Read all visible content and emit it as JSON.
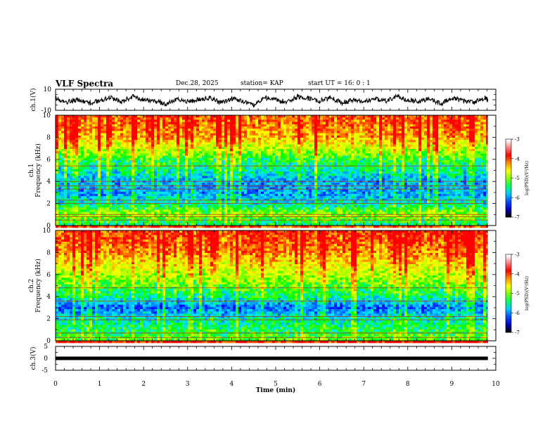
{
  "header": {
    "title": "VLF Spectra",
    "date": "Dec.28, 2025",
    "station": "station= KAP",
    "start": "start  UT =   16: 0  : 1"
  },
  "colors": {
    "spectrum_ramp": [
      "#0000ff",
      "#0080ff",
      "#00e6ff",
      "#00ff00",
      "#b4ff00",
      "#ffff00",
      "#ff8000",
      "#ff0000"
    ],
    "colorbar": [
      "#000000",
      "#0000c8",
      "#0050ff",
      "#00c8ff",
      "#00ff60",
      "#80ff00",
      "#ffff00",
      "#ff9000",
      "#ff0000",
      "#ff8080",
      "#ffffff"
    ]
  },
  "chart_data": [
    {
      "type": "line",
      "name": "ch1-waveform",
      "ylabel": "ch.1(V)",
      "ylim": [
        -10,
        10
      ],
      "yticks": [
        "10",
        "-10"
      ],
      "x": [
        0,
        0.25,
        0.5,
        0.75,
        1,
        1.25,
        1.5,
        1.75,
        2,
        2.25,
        2.5,
        2.75,
        3,
        3.25,
        3.5,
        3.75,
        4,
        4.25,
        4.5,
        4.75,
        5,
        5.25,
        5.5,
        5.75,
        6,
        6.25,
        6.5,
        6.75,
        7,
        7.25,
        7.5,
        7.75,
        8,
        8.25,
        8.5,
        8.75,
        9,
        9.25,
        9.5,
        9.75,
        9.82
      ],
      "y": [
        1,
        -2,
        0,
        -3,
        -1,
        2,
        -2,
        3,
        0,
        -1,
        -4,
        1,
        -2,
        0,
        2,
        -3,
        1,
        -1,
        -5,
        2,
        0,
        -2,
        3,
        1,
        -1,
        2,
        -3,
        0,
        -2,
        1,
        -1,
        3,
        0,
        -2,
        1,
        -4,
        2,
        -1,
        -3,
        2,
        0
      ]
    },
    {
      "type": "heatmap",
      "name": "ch1-spectrogram",
      "ylabel": "Frequency (kHz)",
      "ylabel2": "ch.1",
      "ylim": [
        0,
        10
      ],
      "yticks": [
        "0",
        "2",
        "4",
        "6",
        "8",
        "10"
      ],
      "colorbar": {
        "label": "log(PSD)(V²/Hz)",
        "range": [
          -7,
          -3
        ],
        "ticks": [
          "-3",
          "-4",
          "-5",
          "-6",
          "-7"
        ]
      },
      "band_kHz": [
        0,
        1,
        2,
        3,
        4,
        5,
        6,
        7,
        8,
        9,
        10
      ],
      "band_level": [
        0.35,
        0.55,
        0.3,
        0.18,
        0.2,
        0.33,
        0.42,
        0.62,
        0.8,
        0.86,
        0.9
      ],
      "lines_kHz": [
        0.5,
        0.8,
        1.0,
        2.0,
        2.3,
        3.3,
        3.6,
        4.0,
        5.4
      ]
    },
    {
      "type": "heatmap",
      "name": "ch2-spectrogram",
      "ylabel": "Frequency (kHz)",
      "ylabel2": "ch.2",
      "ylim": [
        0,
        10
      ],
      "yticks": [
        "0",
        "2",
        "4",
        "6",
        "8",
        "10"
      ],
      "colorbar": {
        "label": "log(PSD)(V²/Hz)",
        "range": [
          -7,
          -3
        ],
        "ticks": [
          "-3",
          "-4",
          "-5",
          "-6",
          "-7"
        ]
      },
      "band_kHz": [
        0,
        1,
        2,
        3,
        4,
        5,
        6,
        7,
        8,
        9,
        10
      ],
      "band_level": [
        0.5,
        0.4,
        0.32,
        0.12,
        0.36,
        0.5,
        0.6,
        0.72,
        0.85,
        0.92,
        0.95
      ],
      "lines_kHz": [
        0.3,
        0.7,
        1.9,
        2.2,
        3.6,
        4.8
      ]
    },
    {
      "type": "line",
      "name": "ch3-waveform",
      "ylabel": "ch.3(V)",
      "ylim": [
        -5,
        5
      ],
      "yticks": [
        "5",
        "0",
        "-5"
      ],
      "x": [
        0,
        9.82
      ],
      "y": [
        0,
        0
      ]
    }
  ],
  "xaxis": {
    "label": "Time (min)",
    "xlim": [
      0,
      10
    ],
    "data_end": 9.82,
    "ticks": [
      "0",
      "1",
      "2",
      "3",
      "4",
      "5",
      "6",
      "7",
      "8",
      "9",
      "10"
    ]
  }
}
